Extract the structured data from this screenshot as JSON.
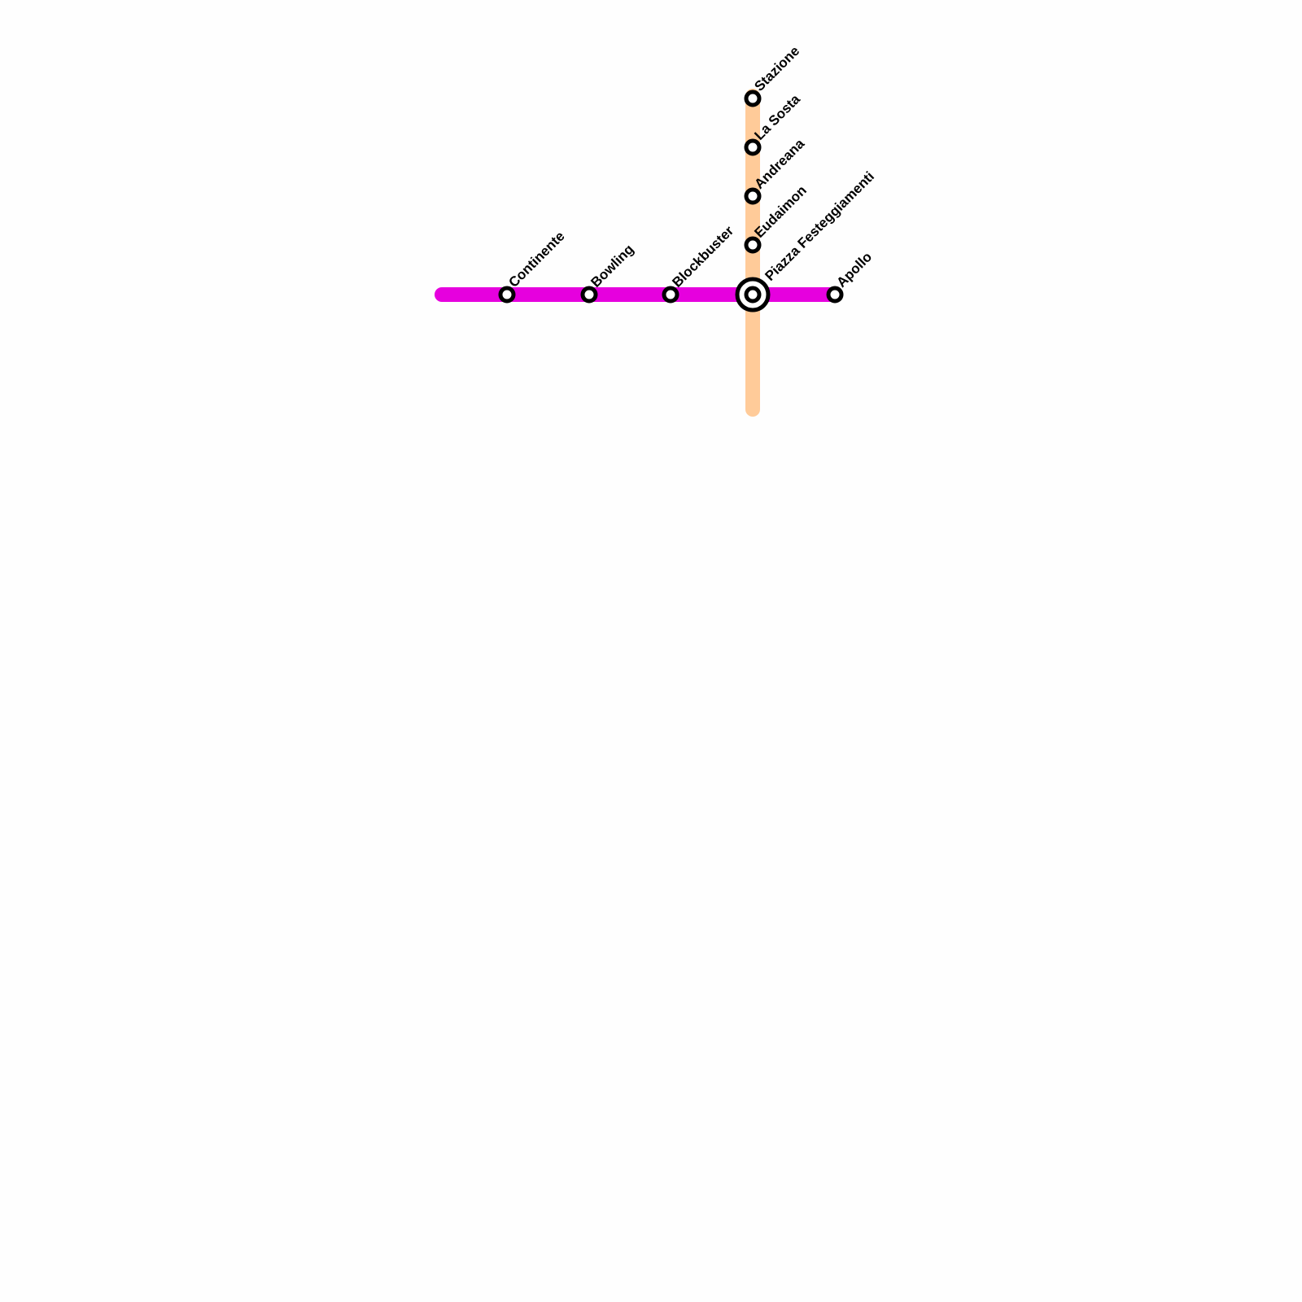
{
  "lines": [
    {
      "name": "purple-line",
      "color": "#e600de"
    },
    {
      "name": "orange-line",
      "color": "#ffcb99"
    }
  ],
  "stations": [
    {
      "label": "Continente",
      "line": "purple",
      "interchange": false
    },
    {
      "label": "Bowling",
      "line": "purple",
      "interchange": false
    },
    {
      "label": "Blockbuster",
      "line": "purple",
      "interchange": false
    },
    {
      "label": "Piazza Festeggiamenti",
      "line": "both",
      "interchange": true
    },
    {
      "label": "Apollo",
      "line": "purple",
      "interchange": false
    },
    {
      "label": "Stazione",
      "line": "orange",
      "interchange": false
    },
    {
      "label": "La Sosta",
      "line": "orange",
      "interchange": false
    },
    {
      "label": "Andreana",
      "line": "orange",
      "interchange": false
    },
    {
      "label": "Eudaimon",
      "line": "orange",
      "interchange": false
    }
  ]
}
